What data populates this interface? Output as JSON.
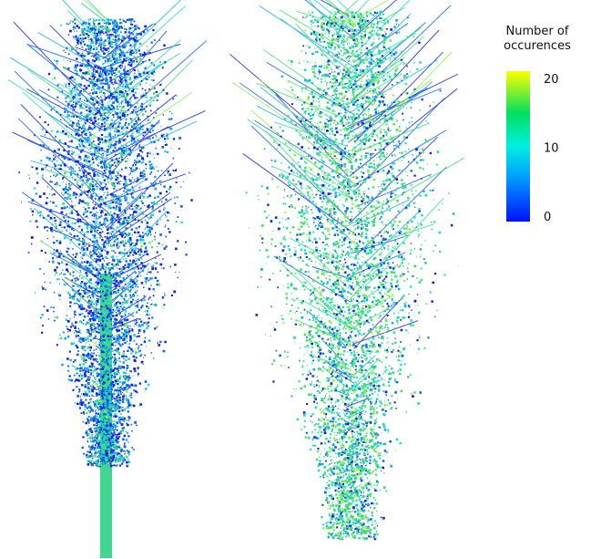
{
  "colorbar": {
    "title_lines": [
      "Number of",
      "occurences"
    ],
    "lim": [
      0,
      20
    ],
    "ticks": [
      0,
      10,
      20
    ]
  }
}
